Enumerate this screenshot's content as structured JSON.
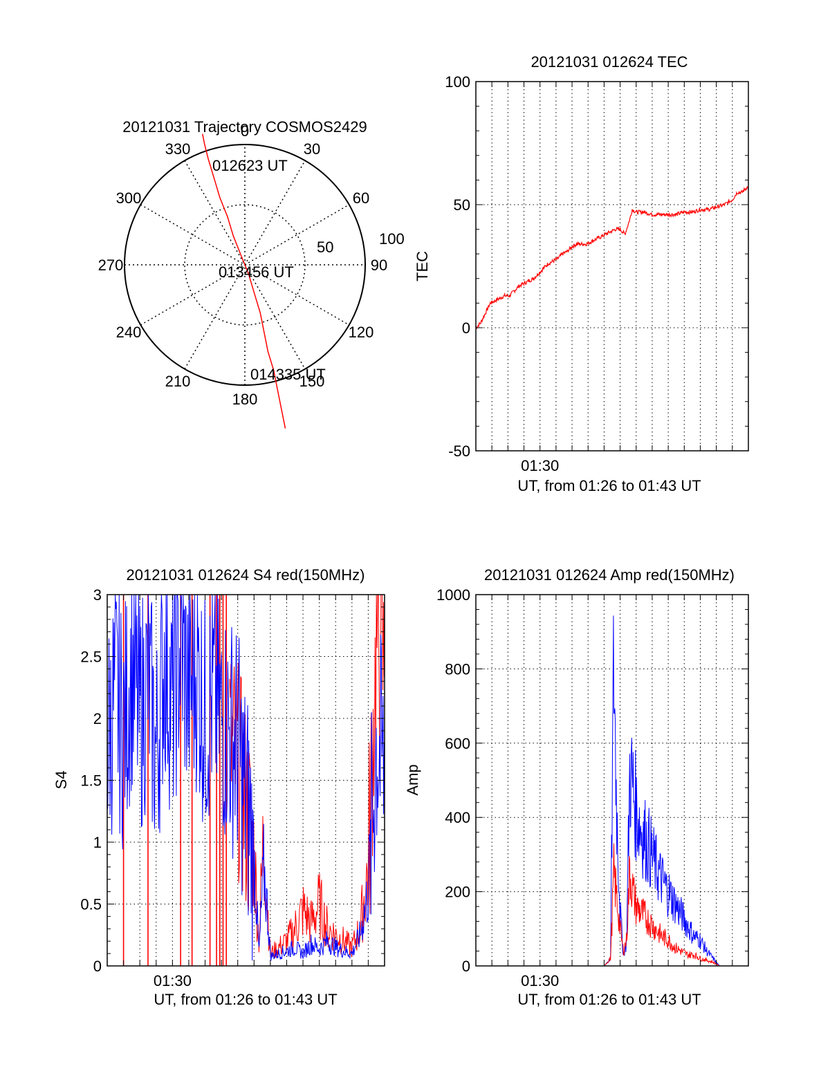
{
  "colors": {
    "red": "#ff0000",
    "blue": "#0000ff",
    "axis": "#000000",
    "grid": "#000000"
  },
  "chart_data": [
    {
      "id": "trajectory",
      "type": "polar",
      "title": "20121031 Trajectory COSMOS2429",
      "angle_labels": [
        "0",
        "30",
        "60",
        "90",
        "120",
        "150",
        "180",
        "210",
        "240",
        "270",
        "300",
        "330"
      ],
      "radial_labels": [
        "50",
        "100"
      ],
      "radial_values": [
        50,
        100
      ],
      "zenith_ring_max": 100,
      "time_labels": {
        "start": "012623 UT",
        "middle": "013456 UT",
        "end": "014335 UT"
      },
      "track": [
        [
          -22,
          68
        ],
        [
          -21,
          63
        ],
        [
          -19,
          55
        ],
        [
          -16,
          45
        ],
        [
          -13,
          35
        ],
        [
          -9,
          25
        ],
        [
          -6,
          15
        ],
        [
          -2,
          5
        ],
        [
          2,
          -5
        ],
        [
          5,
          -15
        ],
        [
          8,
          -25
        ],
        [
          10,
          -35
        ],
        [
          12,
          -45
        ],
        [
          15,
          -55
        ],
        [
          17,
          -65
        ],
        [
          19,
          -75
        ],
        [
          21,
          -85
        ]
      ],
      "track_note_units": "track points are [east-west, north-south] angular offsets in degrees from zenith"
    },
    {
      "id": "tec",
      "type": "line",
      "title": "20121031 012624 TEC",
      "ylabel": "TEC",
      "xlabel": "UT, from 01:26 to 01:43 UT",
      "xtick_label": "01:30",
      "xtick_minute": 4,
      "xlim_minutes": [
        0,
        17
      ],
      "ylim": [
        -50,
        100
      ],
      "yticks": [
        -50,
        0,
        50,
        100
      ],
      "ytick_labels": [
        "-50",
        "0",
        "50",
        "100"
      ],
      "series": [
        {
          "color": "red",
          "x": [
            0,
            0.3,
            0.6,
            0.9,
            1.2,
            1.5,
            1.8,
            2.1,
            2.4,
            2.7,
            3.0,
            3.3,
            3.6,
            3.9,
            4.2,
            4.5,
            4.8,
            5.1,
            5.4,
            5.7,
            6.0,
            6.3,
            6.6,
            6.9,
            7.2,
            7.5,
            7.8,
            8.1,
            8.4,
            8.7,
            9.0,
            9.3,
            9.6,
            9.75,
            10.0,
            10.5,
            11.0,
            11.5,
            12.0,
            12.5,
            13.0,
            13.5,
            14.0,
            14.5,
            15.0,
            15.5,
            16.0,
            16.3,
            16.6,
            16.9,
            17.0
          ],
          "y": [
            0,
            2,
            6,
            10,
            11,
            12,
            13,
            13,
            15,
            17,
            18,
            19,
            20,
            22,
            24,
            26,
            27,
            28,
            30,
            31,
            33,
            34,
            34,
            34,
            35,
            36,
            37,
            38,
            39,
            40,
            40,
            38,
            44,
            48,
            47,
            47,
            46,
            46,
            46,
            46,
            47,
            47,
            48,
            48,
            49,
            50,
            52,
            55,
            55,
            57,
            57
          ]
        }
      ]
    },
    {
      "id": "s4",
      "type": "line",
      "title": "20121031 012624 S4 red(150MHz)",
      "ylabel": "S4",
      "xlabel": "UT, from 01:26 to 01:43 UT",
      "xtick_label": "01:30",
      "xtick_minute": 4,
      "xlim_minutes": [
        0,
        17
      ],
      "ylim": [
        0,
        3
      ],
      "yticks": [
        0,
        0.5,
        1,
        1.5,
        2,
        2.5,
        3
      ],
      "ytick_labels": [
        "0",
        "0.5",
        "1",
        "1.5",
        "2",
        "2.5",
        "3"
      ],
      "series": [
        {
          "color": "blue",
          "name": "",
          "x": [
            0,
            0.5,
            1,
            1.5,
            2,
            2.5,
            3,
            3.5,
            4,
            4.5,
            5,
            5.5,
            6,
            6.5,
            7,
            7.5,
            8,
            8.3,
            8.7,
            9,
            9.3,
            9.6,
            9.9,
            10,
            10.5,
            11,
            11.5,
            12,
            12.5,
            13,
            13.5,
            14,
            14.5,
            15,
            15.5,
            16,
            16.5,
            17
          ],
          "y": [
            1.8,
            2.2,
            1.9,
            2.4,
            2.0,
            2.3,
            1.7,
            2.5,
            2.1,
            2.6,
            2.2,
            2.4,
            2.0,
            2.2,
            2.0,
            1.9,
            1.8,
            1.5,
            1.2,
            0.9,
            0.1,
            0.8,
            0.3,
            0.08,
            0.1,
            0.12,
            0.15,
            0.1,
            0.18,
            0.14,
            0.2,
            0.15,
            0.12,
            0.1,
            0.25,
            0.6,
            1.8,
            1.6
          ]
        },
        {
          "color": "red",
          "name": "",
          "x": [
            7.5,
            8,
            8.3,
            8.7,
            9,
            9.3,
            9.6,
            9.9,
            10,
            10.5,
            11,
            11.5,
            12,
            12.5,
            13,
            13.5,
            14,
            14.5,
            15,
            15.5,
            16,
            16.5,
            17
          ],
          "y": [
            1.8,
            1.6,
            1.4,
            1.1,
            0.9,
            0.2,
            1.1,
            0.3,
            0.1,
            0.15,
            0.2,
            0.3,
            0.45,
            0.35,
            0.5,
            0.3,
            0.25,
            0.2,
            0.15,
            0.3,
            0.8,
            2.6,
            2.4
          ]
        }
      ],
      "red_spikes_x": [
        1,
        2.5,
        4.5,
        5.2,
        6.3,
        6.7,
        6.9,
        7.1,
        7.3
      ]
    },
    {
      "id": "amp",
      "type": "line",
      "title": "20121031 012624 Amp red(150MHz)",
      "ylabel": "Amp",
      "xlabel": "UT, from 01:26 to 01:43 UT",
      "xtick_label": "01:30",
      "xtick_minute": 4,
      "xlim_minutes": [
        0,
        17
      ],
      "ylim": [
        0,
        1000
      ],
      "yticks": [
        0,
        200,
        400,
        600,
        800,
        1000
      ],
      "ytick_labels": [
        "0",
        "200",
        "400",
        "600",
        "800",
        "1000"
      ],
      "series": [
        {
          "color": "blue",
          "name": "",
          "x": [
            0,
            8,
            8.4,
            8.6,
            8.8,
            9.0,
            9.2,
            9.4,
            9.6,
            9.8,
            10.0,
            10.4,
            10.8,
            11.2,
            11.6,
            12.0,
            12.4,
            12.8,
            13.2,
            13.6,
            14.0,
            14.4,
            14.8,
            15.0,
            15.2,
            17
          ],
          "y": [
            0,
            0,
            20,
            830,
            400,
            150,
            30,
            60,
            520,
            480,
            420,
            360,
            320,
            270,
            230,
            200,
            170,
            140,
            110,
            80,
            70,
            40,
            20,
            10,
            0,
            0
          ]
        },
        {
          "color": "red",
          "name": "",
          "x": [
            0,
            8,
            8.4,
            8.6,
            8.8,
            9.0,
            9.2,
            9.4,
            9.6,
            9.8,
            10.0,
            10.4,
            10.8,
            11.2,
            11.6,
            12.0,
            12.4,
            12.8,
            13.2,
            13.6,
            14.0,
            14.4,
            14.8,
            15.0,
            15.2,
            17
          ],
          "y": [
            0,
            0,
            20,
            250,
            180,
            100,
            40,
            70,
            260,
            200,
            160,
            140,
            120,
            100,
            80,
            70,
            50,
            40,
            30,
            30,
            20,
            15,
            10,
            5,
            0,
            0
          ]
        }
      ]
    }
  ]
}
